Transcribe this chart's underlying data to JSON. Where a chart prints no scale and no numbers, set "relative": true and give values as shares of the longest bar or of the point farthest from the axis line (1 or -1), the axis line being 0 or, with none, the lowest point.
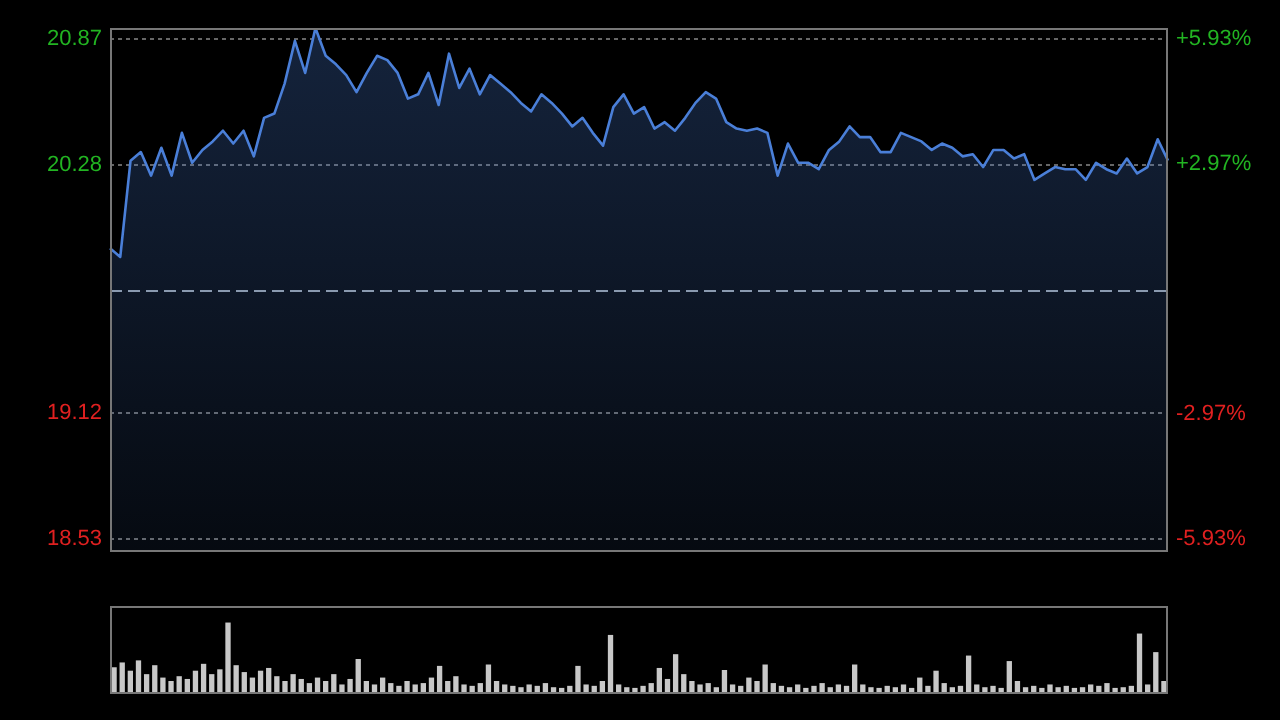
{
  "chart_data": [
    {
      "type": "area",
      "categories": [
        null,
        null,
        null,
        null,
        null,
        null,
        null,
        null,
        null,
        null,
        null,
        null,
        null,
        null,
        null,
        null,
        null,
        null,
        null,
        null,
        null,
        null,
        null,
        null,
        null,
        null,
        null,
        null,
        null,
        null,
        null,
        null,
        null,
        null,
        null,
        null,
        null,
        null,
        null,
        null,
        null,
        null,
        null,
        null,
        null,
        null,
        null,
        null,
        null,
        null,
        null,
        null,
        null,
        null,
        null,
        null,
        null,
        null,
        null,
        null,
        null,
        null,
        null,
        null,
        null,
        null,
        null,
        null,
        null,
        null,
        null,
        null,
        null,
        null,
        null,
        null,
        null,
        null,
        null,
        null,
        null,
        null,
        null,
        null,
        null,
        null,
        null,
        null,
        null,
        null,
        null,
        null,
        null,
        null,
        null,
        null,
        null,
        null,
        null,
        null,
        null,
        null,
        null,
        null
      ],
      "series": [
        {
          "color": "#4a7fd8",
          "values": [
            19.89,
            19.85,
            20.3,
            20.34,
            20.23,
            20.36,
            20.23,
            20.43,
            20.29,
            20.35,
            20.39,
            20.44,
            20.38,
            20.44,
            20.32,
            20.5,
            20.52,
            20.66,
            20.86,
            20.71,
            20.92,
            20.79,
            20.75,
            20.7,
            20.62,
            20.71,
            20.79,
            20.77,
            20.71,
            20.59,
            20.61,
            20.71,
            20.56,
            20.8,
            20.64,
            20.73,
            20.61,
            20.7,
            20.66,
            20.62,
            20.57,
            20.53,
            20.61,
            20.57,
            20.52,
            20.46,
            20.5,
            20.43,
            20.37,
            20.55,
            20.61,
            20.52,
            20.55,
            20.45,
            20.48,
            20.44,
            20.5,
            20.57,
            20.62,
            20.59,
            20.48,
            20.45,
            20.44,
            20.45,
            20.43,
            20.23,
            20.38,
            20.29,
            20.29,
            20.26,
            20.35,
            20.39,
            20.46,
            20.41,
            20.41,
            20.34,
            20.34,
            20.43,
            20.41,
            20.39,
            20.35,
            20.38,
            20.36,
            20.32,
            20.33,
            20.27,
            20.35,
            20.35,
            20.31,
            20.33,
            20.21,
            20.24,
            20.27,
            20.26,
            20.26,
            20.21,
            20.29,
            20.26,
            20.24,
            20.31,
            20.24,
            20.27,
            20.4,
            20.3
          ]
        }
      ],
      "ylim": [
        18.48,
        20.92
      ],
      "yticks": [
        18.53,
        19.12,
        20.28,
        20.87
      ],
      "y2lim": [
        -6.19,
        6.19
      ],
      "y2ticks": [
        {
          "value": -5.93,
          "label": "-5.93%"
        },
        {
          "value": -2.97,
          "label": "-2.97%"
        },
        {
          "value": 2.97,
          "label": "+2.97%"
        },
        {
          "value": 5.93,
          "label": "+5.93%"
        }
      ],
      "ref_lines": [
        {
          "axis": "y",
          "value": 19.7,
          "line_style": "dashed"
        }
      ],
      "grid": "y",
      "tick_labels": "y"
    },
    {
      "type": "bar",
      "relative": true,
      "color": "#c8c8c8",
      "tick_labels": false,
      "categories": [
        null,
        null,
        null,
        null,
        null,
        null,
        null,
        null,
        null,
        null,
        null,
        null,
        null,
        null,
        null,
        null,
        null,
        null,
        null,
        null,
        null,
        null,
        null,
        null,
        null,
        null,
        null,
        null,
        null,
        null,
        null,
        null,
        null,
        null,
        null,
        null,
        null,
        null,
        null,
        null,
        null,
        null,
        null,
        null,
        null,
        null,
        null,
        null,
        null,
        null,
        null,
        null,
        null,
        null,
        null,
        null,
        null,
        null,
        null,
        null,
        null,
        null,
        null,
        null,
        null,
        null,
        null,
        null,
        null,
        null,
        null,
        null,
        null,
        null,
        null,
        null,
        null,
        null,
        null,
        null,
        null,
        null,
        null,
        null,
        null,
        null,
        null,
        null,
        null,
        null,
        null,
        null,
        null,
        null,
        null,
        null,
        null,
        null,
        null,
        null,
        null,
        null,
        null,
        null,
        null,
        null,
        null,
        null,
        null,
        null,
        null,
        null,
        null,
        null,
        null,
        null,
        null,
        null,
        null,
        null,
        null,
        null,
        null,
        null,
        null,
        null,
        null,
        null,
        null,
        null
      ],
      "values": [
        0.35,
        0.42,
        0.3,
        0.45,
        0.25,
        0.38,
        0.2,
        0.15,
        0.22,
        0.18,
        0.3,
        0.4,
        0.25,
        0.32,
        1,
        0.38,
        0.28,
        0.2,
        0.3,
        0.34,
        0.22,
        0.15,
        0.25,
        0.18,
        0.12,
        0.2,
        0.15,
        0.25,
        0.1,
        0.18,
        0.47,
        0.15,
        0.1,
        0.2,
        0.12,
        0.08,
        0.15,
        0.1,
        0.12,
        0.2,
        0.37,
        0.15,
        0.22,
        0.1,
        0.08,
        0.12,
        0.39,
        0.15,
        0.1,
        0.08,
        0.06,
        0.1,
        0.08,
        0.12,
        0.06,
        0.05,
        0.08,
        0.37,
        0.1,
        0.08,
        0.15,
        0.82,
        0.1,
        0.06,
        0.05,
        0.08,
        0.12,
        0.34,
        0.18,
        0.54,
        0.25,
        0.15,
        0.1,
        0.12,
        0.06,
        0.31,
        0.1,
        0.08,
        0.2,
        0.15,
        0.39,
        0.12,
        0.08,
        0.06,
        0.1,
        0.05,
        0.08,
        0.12,
        0.06,
        0.1,
        0.08,
        0.39,
        0.1,
        0.06,
        0.05,
        0.08,
        0.06,
        0.1,
        0.05,
        0.2,
        0.08,
        0.3,
        0.12,
        0.06,
        0.08,
        0.52,
        0.1,
        0.06,
        0.08,
        0.05,
        0.44,
        0.15,
        0.06,
        0.08,
        0.05,
        0.1,
        0.06,
        0.08,
        0.05,
        0.06,
        0.1,
        0.08,
        0.12,
        0.05,
        0.06,
        0.08,
        0.84,
        0.1,
        0.57,
        0.15
      ]
    }
  ]
}
